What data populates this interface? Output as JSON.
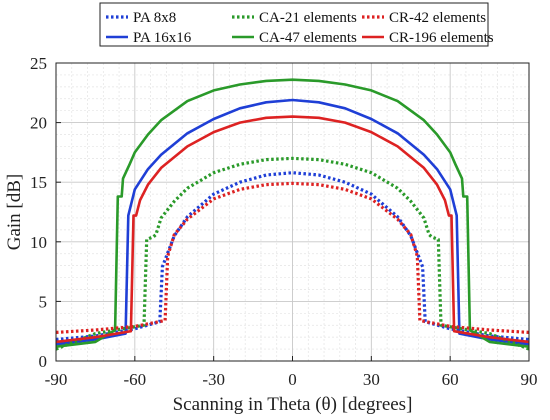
{
  "chart_data": {
    "type": "line",
    "xlabel": "Scanning in Theta (θ) [degrees]",
    "ylabel": "Gain [dB]",
    "xlim": [
      -90,
      90
    ],
    "ylim": [
      0,
      25
    ],
    "x_ticks": [
      -90,
      -60,
      -30,
      0,
      30,
      60,
      90
    ],
    "y_ticks": [
      0,
      5,
      10,
      15,
      20,
      25
    ],
    "grid": true,
    "minor_grid": true,
    "legend_position": "top",
    "series": [
      {
        "name": "PA 8x8",
        "color": "#1f3fd6",
        "dash": "dotted",
        "x": [
          -90,
          -75,
          -60,
          -50.5,
          -49.5,
          -45,
          -40,
          -30,
          -20,
          -10,
          0,
          10,
          20,
          30,
          40,
          45,
          49.5,
          50.5,
          60,
          75,
          90
        ],
        "y": [
          1.8,
          2.1,
          2.7,
          3.3,
          7.9,
          10.5,
          12.1,
          14.0,
          15.0,
          15.6,
          15.8,
          15.6,
          15.0,
          14.0,
          12.1,
          10.5,
          7.9,
          3.3,
          2.7,
          2.1,
          1.8
        ]
      },
      {
        "name": "PA 16x16",
        "color": "#1f3fd6",
        "dash": "solid",
        "x": [
          -90,
          -75,
          -63.5,
          -62.5,
          -60,
          -55,
          -50,
          -40,
          -30,
          -20,
          -10,
          0,
          10,
          20,
          30,
          40,
          50,
          55,
          60,
          62.5,
          63.5,
          75,
          90
        ],
        "y": [
          1.4,
          1.8,
          2.3,
          12.2,
          14.4,
          16.1,
          17.3,
          19.1,
          20.3,
          21.2,
          21.7,
          21.9,
          21.7,
          21.2,
          20.3,
          19.1,
          17.3,
          16.1,
          14.4,
          12.2,
          2.3,
          1.8,
          1.4
        ]
      },
      {
        "name": "CA-21 elements",
        "color": "#2a9a2a",
        "dash": "dotted",
        "x": [
          -90,
          -75,
          -56.5,
          -55.5,
          -53,
          -52,
          -50,
          -45,
          -40,
          -30,
          -20,
          -10,
          0,
          10,
          20,
          30,
          40,
          45,
          50,
          52,
          53,
          55.5,
          56.5,
          75,
          90
        ],
        "y": [
          1.0,
          2.3,
          3.0,
          10.2,
          10.4,
          10.6,
          12.0,
          13.4,
          14.5,
          15.8,
          16.5,
          16.9,
          17.0,
          16.9,
          16.5,
          15.8,
          14.5,
          13.4,
          12.0,
          10.6,
          10.4,
          10.2,
          3.0,
          2.3,
          1.0
        ]
      },
      {
        "name": "CA-47 elements",
        "color": "#2a9a2a",
        "dash": "solid",
        "x": [
          -90,
          -75,
          -67.5,
          -66.5,
          -65,
          -64.5,
          -62,
          -60,
          -55,
          -50,
          -40,
          -30,
          -20,
          -10,
          0,
          10,
          20,
          30,
          40,
          50,
          55,
          60,
          62,
          64.5,
          65,
          66.5,
          67.5,
          75,
          90
        ],
        "y": [
          1.2,
          1.6,
          2.6,
          13.8,
          13.8,
          15.3,
          16.5,
          17.5,
          19.0,
          20.2,
          21.8,
          22.7,
          23.2,
          23.5,
          23.6,
          23.5,
          23.2,
          22.7,
          21.8,
          20.2,
          19.0,
          17.5,
          16.5,
          15.3,
          13.8,
          13.8,
          2.6,
          1.6,
          1.2
        ]
      },
      {
        "name": "CR-42 elements",
        "color": "#dd2222",
        "dash": "dotted",
        "x": [
          -90,
          -75,
          -60,
          -48.5,
          -47.5,
          -45,
          -40,
          -30,
          -20,
          -10,
          0,
          10,
          20,
          30,
          40,
          45,
          47.5,
          48.5,
          60,
          75,
          90
        ],
        "y": [
          2.4,
          2.6,
          2.9,
          3.4,
          8.8,
          10.6,
          11.9,
          13.6,
          14.4,
          14.8,
          14.9,
          14.8,
          14.4,
          13.6,
          11.9,
          10.6,
          8.8,
          3.4,
          2.9,
          2.6,
          2.4
        ]
      },
      {
        "name": "CR-196 elements",
        "color": "#dd2222",
        "dash": "solid",
        "x": [
          -90,
          -75,
          -61.5,
          -60.5,
          -59.5,
          -58,
          -55,
          -50,
          -40,
          -30,
          -20,
          -10,
          0,
          10,
          20,
          30,
          40,
          50,
          55,
          58,
          59.5,
          60.5,
          61.5,
          75,
          90
        ],
        "y": [
          1.6,
          2.0,
          2.5,
          12.2,
          12.2,
          13.5,
          14.8,
          16.2,
          18.0,
          19.2,
          20.0,
          20.4,
          20.5,
          20.4,
          20.0,
          19.2,
          18.0,
          16.2,
          14.8,
          13.5,
          12.2,
          12.2,
          2.5,
          2.0,
          1.6
        ]
      }
    ]
  }
}
